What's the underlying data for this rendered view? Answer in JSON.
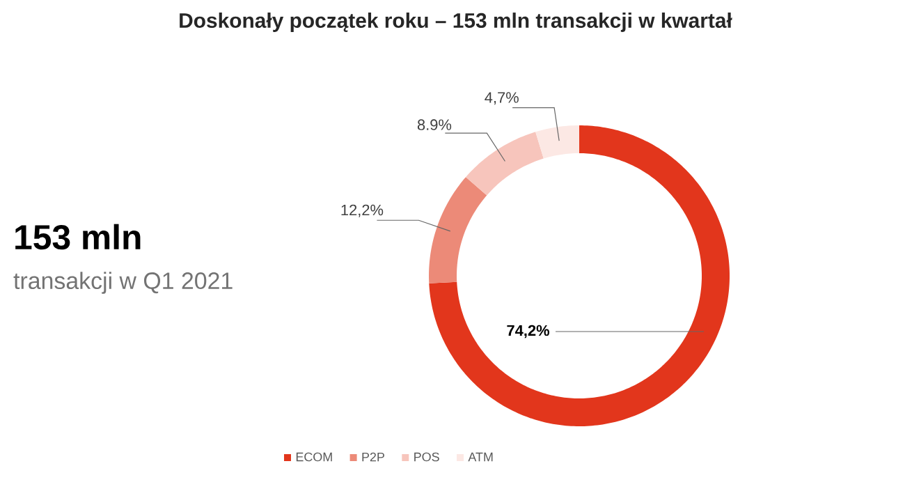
{
  "chart_data": {
    "type": "donut",
    "title": "Doskonały początek roku – 153 mln transakcji w kwartał",
    "categories": [
      "ECOM",
      "P2P",
      "POS",
      "ATM"
    ],
    "values": [
      74.2,
      12.2,
      8.9,
      4.7
    ],
    "value_labels": [
      "74,2%",
      "12,2%",
      "8.9%",
      "4,7%"
    ],
    "colors": [
      "#e2361c",
      "#ec8a78",
      "#f7c5bc",
      "#fce8e4"
    ],
    "legend": "bottom",
    "annotations": [
      "153 mln",
      "transakcji w Q1 2021"
    ]
  }
}
